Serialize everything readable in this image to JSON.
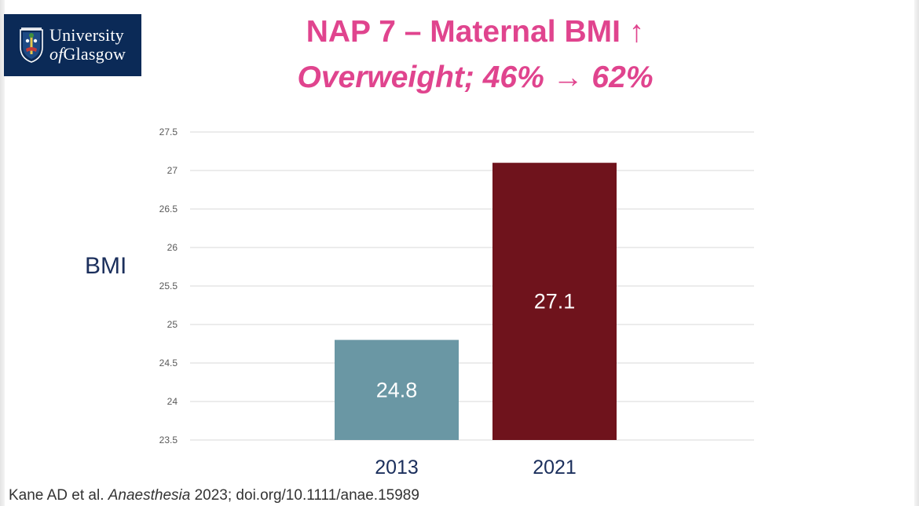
{
  "logo": {
    "line1": "University",
    "line2_prefix": "of",
    "line2_rest": "Glasgow",
    "crest_icon": "university-crest-icon"
  },
  "title": {
    "main": "NAP 7 – Maternal BMI ↑",
    "sub": "Overweight; 46% → 62%"
  },
  "chart_data": {
    "type": "bar",
    "categories": [
      "2013",
      "2021"
    ],
    "values": [
      24.8,
      27.1
    ],
    "data_labels": [
      "24.8",
      "27.1"
    ],
    "colors": [
      "#6a97a4",
      "#6f131c"
    ],
    "ylabel": "BMI",
    "xlabel": "",
    "ylim": [
      23.5,
      27.5
    ],
    "yticks": [
      "23.5",
      "24",
      "24.5",
      "25",
      "25.5",
      "26",
      "26.5",
      "27",
      "27.5"
    ],
    "grid": true,
    "legend": "none"
  },
  "citation": {
    "prefix": "Kane AD et al. ",
    "journal": "Anaesthesia",
    "suffix": " 2023; doi.org/10.1111/anae.15989"
  }
}
